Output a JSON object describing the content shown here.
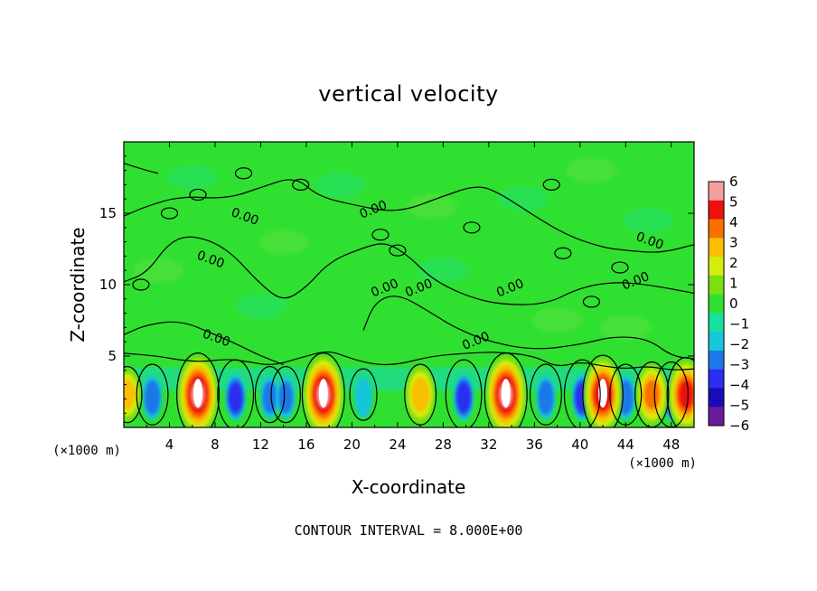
{
  "chart_data": {
    "type": "heatmap",
    "title": "vertical velocity",
    "xlabel": "X-coordinate",
    "ylabel": "Z-coordinate",
    "x_unit_note": "(×1000 m)",
    "z_unit_note": "(×1000 m)",
    "xlim": [
      0,
      50
    ],
    "ylim": [
      0,
      20
    ],
    "x_ticks": [
      4,
      8,
      12,
      16,
      20,
      24,
      28,
      32,
      36,
      40,
      44,
      48
    ],
    "y_ticks": [
      5,
      10,
      15
    ],
    "colorbar": {
      "min": -6,
      "max": 6,
      "ticks": [
        6,
        5,
        4,
        3,
        2,
        1,
        0,
        -1,
        -2,
        -3,
        -4,
        -5,
        -6
      ],
      "tick_labels": [
        "6",
        "5",
        "4",
        "3",
        "2",
        "1",
        "0",
        "−1",
        "−2",
        "−3",
        "−4",
        "−5",
        "−6"
      ],
      "colors": [
        "#6a1b9a",
        "#1a0bb8",
        "#2a2ef0",
        "#1f78e8",
        "#18c6d8",
        "#18e0a0",
        "#30e030",
        "#7ce010",
        "#d4ec10",
        "#f8c000",
        "#f87000",
        "#f01010",
        "#f4a0a0"
      ]
    },
    "contour_labels": [
      {
        "text": "0.00",
        "x": 10.5,
        "z": 14.5
      },
      {
        "text": "0.00",
        "x": 22.0,
        "z": 15.0
      },
      {
        "text": "0.00",
        "x": 7.5,
        "z": 11.5
      },
      {
        "text": "0.00",
        "x": 8.0,
        "z": 6.0
      },
      {
        "text": "0.00",
        "x": 23.0,
        "z": 9.5
      },
      {
        "text": "0.00",
        "x": 26.0,
        "z": 9.5
      },
      {
        "text": "0.00",
        "x": 34.0,
        "z": 9.5
      },
      {
        "text": "0.00",
        "x": 31.0,
        "z": 5.8
      },
      {
        "text": "0.00",
        "x": 46.0,
        "z": 12.8
      },
      {
        "text": "0.00",
        "x": 45.0,
        "z": 10.0
      }
    ],
    "updrafts": [
      {
        "x": 6.5,
        "w": 6.0
      },
      {
        "x": 17.5,
        "w": 6.0
      },
      {
        "x": 26.0,
        "w": 3.5
      },
      {
        "x": 33.5,
        "w": 6.0
      },
      {
        "x": 42.0,
        "w": 5.5
      },
      {
        "x": 46.3,
        "w": 4.0
      },
      {
        "x": 49.3,
        "w": 5.0
      },
      {
        "x": 0.3,
        "w": 3.0
      }
    ],
    "downdrafts": [
      {
        "x": 2.5,
        "w": -3.5
      },
      {
        "x": 9.8,
        "w": -4.5
      },
      {
        "x": 12.8,
        "w": -3.0
      },
      {
        "x": 14.2,
        "w": -3.0
      },
      {
        "x": 21.0,
        "w": -2.5
      },
      {
        "x": 29.8,
        "w": -4.5
      },
      {
        "x": 37.0,
        "w": -3.5
      },
      {
        "x": 40.2,
        "w": -4.5
      },
      {
        "x": 44.0,
        "w": -3.5
      },
      {
        "x": 48.0,
        "w": -4.0
      }
    ],
    "footer": "CONTOUR INTERVAL = 8.000E+00"
  }
}
